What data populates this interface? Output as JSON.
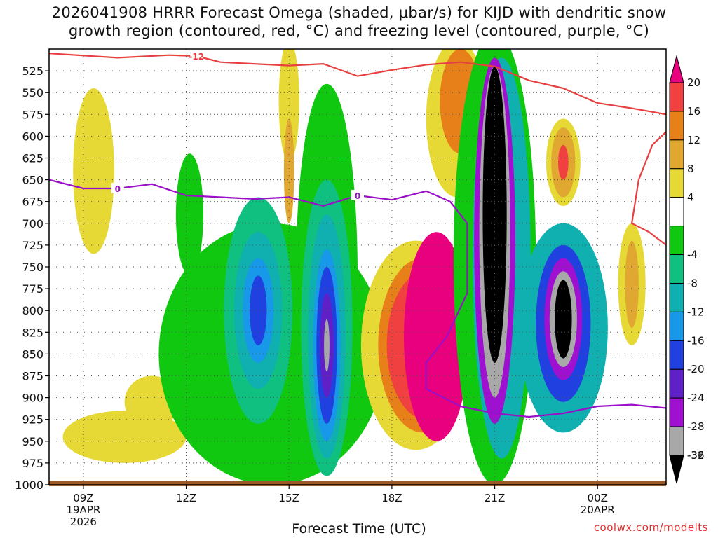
{
  "title_line1": "2026041908 HRRR Forecast Omega (shaded, μbar/s) for KIJD with dendritic snow",
  "title_line2": "growth region (contoured, red, °C) and freezing level (contoured, purple, °C)",
  "credit": "coolwx.com/modelts",
  "chart_data": {
    "type": "heatmap",
    "xlabel": "Forecast Time (UTC)",
    "ylabel": "",
    "x_ticks": [
      {
        "hour": 9,
        "lines": [
          "09Z",
          "19APR",
          "2026"
        ]
      },
      {
        "hour": 12,
        "lines": [
          "12Z"
        ]
      },
      {
        "hour": 15,
        "lines": [
          "15Z"
        ]
      },
      {
        "hour": 18,
        "lines": [
          "18Z"
        ]
      },
      {
        "hour": 21,
        "lines": [
          "21Z"
        ]
      },
      {
        "hour": 24,
        "lines": [
          "00Z",
          "20APR"
        ]
      }
    ],
    "xlim": [
      8,
      26
    ],
    "ylim": [
      500,
      1000
    ],
    "y_ticks": [
      525,
      550,
      575,
      600,
      625,
      650,
      675,
      700,
      725,
      750,
      775,
      800,
      825,
      850,
      875,
      900,
      925,
      950,
      975,
      1000
    ],
    "grid": true,
    "legend_placement": "right",
    "colorbar": [
      {
        "label": "20",
        "color": "#e8007e"
      },
      {
        "label": "16",
        "color": "#f04040"
      },
      {
        "label": "12",
        "color": "#e8801a"
      },
      {
        "label": "8",
        "color": "#e0a830"
      },
      {
        "label": "4",
        "color": "#e6d835"
      },
      {
        "label": "",
        "color": "#ffffff"
      },
      {
        "label": "-4",
        "color": "#10c810"
      },
      {
        "label": "-8",
        "color": "#10c080"
      },
      {
        "label": "-12",
        "color": "#10b0b0"
      },
      {
        "label": "-16",
        "color": "#1898e8"
      },
      {
        "label": "-20",
        "color": "#2040e0"
      },
      {
        "label": "-24",
        "color": "#6020c8"
      },
      {
        "label": "-28",
        "color": "#a010d0"
      },
      {
        "label": "-32",
        "color": "#a8a8a8"
      },
      {
        "label": "-36",
        "color": "#000000"
      }
    ],
    "omega_regions": [
      {
        "name": "yellow-left",
        "level": "4",
        "hour": 9.3,
        "p": 640,
        "hw": 0.6,
        "hp": 95
      },
      {
        "name": "yellow-bottom-left",
        "level": "4",
        "hour": 10.2,
        "p": 945,
        "hw": 1.8,
        "hp": 30
      },
      {
        "name": "yellow-bottom-left-peak",
        "level": "4",
        "hour": 11,
        "p": 905,
        "hw": 0.8,
        "hp": 30
      },
      {
        "name": "green-12z",
        "level": "-4",
        "hour": 12.1,
        "p": 690,
        "hw": 0.4,
        "hp": 70
      },
      {
        "name": "green-broad",
        "level": "-4",
        "hour": 14.5,
        "p": 850,
        "hw": 3.3,
        "hp": 150
      },
      {
        "name": "teal-14z",
        "level": "-8",
        "hour": 14.1,
        "p": 800,
        "hw": 1.0,
        "hp": 130
      },
      {
        "name": "cyan-14z",
        "level": "-12",
        "hour": 14.1,
        "p": 800,
        "hw": 0.7,
        "hp": 90
      },
      {
        "name": "blue-14z",
        "level": "-16",
        "hour": 14.1,
        "p": 800,
        "hw": 0.45,
        "hp": 60
      },
      {
        "name": "dblue-14z",
        "level": "-20",
        "hour": 14.1,
        "p": 800,
        "hw": 0.25,
        "hp": 40
      },
      {
        "name": "green-16z",
        "level": "-4",
        "hour": 16.1,
        "p": 760,
        "hw": 0.9,
        "hp": 220
      },
      {
        "name": "teal-16z",
        "level": "-8",
        "hour": 16.1,
        "p": 820,
        "hw": 0.75,
        "hp": 170
      },
      {
        "name": "cyan-16z",
        "level": "-12",
        "hour": 16.1,
        "p": 830,
        "hw": 0.55,
        "hp": 140
      },
      {
        "name": "blue-16z",
        "level": "-16",
        "hour": 16.1,
        "p": 840,
        "hw": 0.4,
        "hp": 110
      },
      {
        "name": "dblue-16z",
        "level": "-20",
        "hour": 16.1,
        "p": 840,
        "hw": 0.3,
        "hp": 90
      },
      {
        "name": "purple-16z",
        "level": "-24",
        "hour": 16.1,
        "p": 840,
        "hw": 0.2,
        "hp": 60
      },
      {
        "name": "gray-16z",
        "level": "-32",
        "hour": 16.1,
        "p": 840,
        "hw": 0.08,
        "hp": 30
      },
      {
        "name": "yellow-15z",
        "level": "4",
        "hour": 15,
        "p": 560,
        "hw": 0.3,
        "hp": 70
      },
      {
        "name": "orange-15z",
        "level": "8",
        "hour": 15,
        "p": 640,
        "hw": 0.15,
        "hp": 60
      },
      {
        "name": "yellow-18z",
        "level": "4",
        "hour": 18.7,
        "p": 840,
        "hw": 1.6,
        "hp": 120
      },
      {
        "name": "orange-18z",
        "level": "12",
        "hour": 18.9,
        "p": 840,
        "hw": 1.3,
        "hp": 100
      },
      {
        "name": "red-18z",
        "level": "16",
        "hour": 19.0,
        "p": 840,
        "hw": 1.15,
        "hp": 85
      },
      {
        "name": "magenta-18z",
        "level": "20",
        "hour": 19.3,
        "p": 830,
        "hw": 0.95,
        "hp": 120
      },
      {
        "name": "yellow-19z-top",
        "level": "4",
        "hour": 19.9,
        "p": 580,
        "hw": 0.9,
        "hp": 90
      },
      {
        "name": "orange-19z-top",
        "level": "12",
        "hour": 20.0,
        "p": 560,
        "hw": 0.6,
        "hp": 60
      },
      {
        "name": "green-20z",
        "level": "-4",
        "hour": 21.0,
        "p": 740,
        "hw": 1.2,
        "hp": 260
      },
      {
        "name": "cyan-21z",
        "level": "-12",
        "hour": 21.2,
        "p": 740,
        "hw": 0.85,
        "hp": 230
      },
      {
        "name": "purple-21z",
        "level": "-28",
        "hour": 21.0,
        "p": 720,
        "hw": 0.6,
        "hp": 210
      },
      {
        "name": "gray-21z",
        "level": "-32",
        "hour": 21.0,
        "p": 710,
        "hw": 0.45,
        "hp": 190
      },
      {
        "name": "black-21z",
        "level": "-36",
        "hour": 21.0,
        "p": 690,
        "hw": 0.35,
        "hp": 170
      },
      {
        "name": "blue-23z",
        "level": "-12",
        "hour": 23.0,
        "p": 820,
        "hw": 1.3,
        "hp": 120
      },
      {
        "name": "dblue-23z",
        "level": "-20",
        "hour": 23.0,
        "p": 815,
        "hw": 0.8,
        "hp": 90
      },
      {
        "name": "purple-23z",
        "level": "-28",
        "hour": 23.0,
        "p": 810,
        "hw": 0.55,
        "hp": 70
      },
      {
        "name": "gray-23z",
        "level": "-32",
        "hour": 23.0,
        "p": 810,
        "hw": 0.4,
        "hp": 55
      },
      {
        "name": "black-23z",
        "level": "-36",
        "hour": 23.0,
        "p": 810,
        "hw": 0.25,
        "hp": 45
      },
      {
        "name": "yellow-23z-upper",
        "level": "4",
        "hour": 23.0,
        "p": 630,
        "hw": 0.5,
        "hp": 50
      },
      {
        "name": "orange-23z-upper",
        "level": "8",
        "hour": 23.0,
        "p": 630,
        "hw": 0.35,
        "hp": 40
      },
      {
        "name": "red-23z-upper",
        "level": "16",
        "hour": 23.0,
        "p": 630,
        "hw": 0.15,
        "hp": 20
      },
      {
        "name": "yellow-01z",
        "level": "4",
        "hour": 25.0,
        "p": 770,
        "hw": 0.4,
        "hp": 70
      },
      {
        "name": "orange-01z",
        "level": "8",
        "hour": 25.0,
        "p": 770,
        "hw": 0.2,
        "hp": 50
      }
    ],
    "contours": [
      {
        "name": "dendritic-snow-growth--12C",
        "label": "-12",
        "color": "#e84040",
        "points": [
          [
            8,
            505
          ],
          [
            10,
            510
          ],
          [
            11.5,
            507
          ],
          [
            12.3,
            508
          ],
          [
            13,
            515
          ],
          [
            15,
            519
          ],
          [
            16,
            517
          ],
          [
            17,
            531
          ],
          [
            18,
            524
          ],
          [
            19,
            518
          ],
          [
            20,
            515
          ],
          [
            21,
            520
          ],
          [
            22,
            536
          ],
          [
            23,
            545
          ],
          [
            24,
            562
          ],
          [
            25,
            568
          ],
          [
            26,
            575
          ]
        ]
      },
      {
        "name": "dendritic-snow-growth-right",
        "label": "",
        "color": "#e84040",
        "points": [
          [
            26,
            595
          ],
          [
            25.6,
            610
          ],
          [
            25.2,
            650
          ],
          [
            25.0,
            700
          ],
          [
            25.5,
            710
          ],
          [
            26,
            725
          ]
        ]
      },
      {
        "name": "freezing-level-0C",
        "label": "0",
        "color": "#9a10c8",
        "points": [
          [
            8,
            650
          ],
          [
            9,
            660
          ],
          [
            10,
            660
          ],
          [
            11,
            655
          ],
          [
            12,
            668
          ],
          [
            14,
            672
          ],
          [
            15,
            670
          ],
          [
            16,
            680
          ],
          [
            17,
            668
          ],
          [
            18,
            673
          ],
          [
            19,
            663
          ],
          [
            19.7,
            675
          ],
          [
            20.2,
            700
          ],
          [
            20.2,
            780
          ],
          [
            19.6,
            830
          ],
          [
            19.0,
            860
          ],
          [
            19.0,
            890
          ],
          [
            20,
            910
          ],
          [
            21,
            918
          ],
          [
            22,
            922
          ],
          [
            23,
            918
          ],
          [
            24,
            910
          ],
          [
            25,
            908
          ],
          [
            26,
            912
          ]
        ]
      }
    ]
  }
}
